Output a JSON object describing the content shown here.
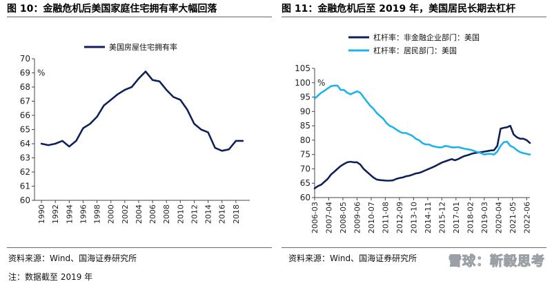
{
  "left_figure": {
    "title": "图 10：金融危机后美国家庭住宅拥有率大幅回落",
    "source": "资料来源：Wind、国海证券研究所",
    "note": "注：数据截至 2019 年"
  },
  "right_figure": {
    "title": "图 11：金融危机后至 2019 年，美国居民长期去杠杆",
    "source": "资料来源：Wind、国海证券研究所"
  },
  "watermark": "雪球：靳毅思考",
  "colors": {
    "dark_series": "#0d2059",
    "light_series": "#1ab3ee",
    "axis": "#444444"
  },
  "chart_data": [
    {
      "type": "line",
      "unit_label": "%",
      "ylim": [
        60,
        70
      ],
      "yticks": [
        60,
        61,
        62,
        63,
        64,
        65,
        66,
        67,
        68,
        69,
        70
      ],
      "xlim": [
        1989,
        2020
      ],
      "xticks": [
        "1990",
        "1992",
        "1994",
        "1996",
        "1998",
        "2000",
        "2002",
        "2004",
        "2006",
        "2008",
        "2010",
        "2012",
        "2014",
        "2016",
        "2018"
      ],
      "legend_position": "top-center",
      "series": [
        {
          "name": "美国房屋住宅拥有率",
          "color": "#0d2059",
          "x": [
            1990,
            1991,
            1992,
            1993,
            1994,
            1995,
            1996,
            1997,
            1998,
            1999,
            2000,
            2001,
            2002,
            2003,
            2004,
            2005,
            2006,
            2007,
            2008,
            2009,
            2010,
            2011,
            2012,
            2013,
            2014,
            2015,
            2016,
            2017,
            2018,
            2019
          ],
          "y": [
            64.0,
            63.9,
            64.0,
            64.2,
            63.8,
            64.2,
            65.1,
            65.4,
            65.9,
            66.7,
            67.1,
            67.5,
            67.8,
            68.0,
            68.6,
            69.1,
            68.5,
            68.4,
            67.8,
            67.3,
            67.1,
            66.4,
            65.4,
            65.0,
            64.8,
            63.7,
            63.5,
            63.6,
            64.2,
            64.2
          ]
        }
      ]
    },
    {
      "type": "line",
      "unit_label": "%",
      "ylim": [
        60,
        105
      ],
      "yticks": [
        60,
        65,
        70,
        75,
        80,
        85,
        90,
        95,
        100,
        105
      ],
      "xlim": [
        "2006-03",
        "2022-09"
      ],
      "xticks": [
        "2006-03",
        "2007-04",
        "2008-05",
        "2009-06",
        "2010-07",
        "2011-08",
        "2012-09",
        "2013-10",
        "2014-11",
        "2015-12",
        "2017-01",
        "2018-02",
        "2019-03",
        "2020-04",
        "2021-05",
        "2022-06"
      ],
      "legend_position": "top-center",
      "series": [
        {
          "name": "杠杆率：非金融企业部门：美国",
          "color": "#0d2059",
          "x": [
            "2006-03",
            "2006-06",
            "2006-09",
            "2006-12",
            "2007-03",
            "2007-06",
            "2007-09",
            "2007-12",
            "2008-03",
            "2008-06",
            "2008-09",
            "2008-12",
            "2009-03",
            "2009-06",
            "2009-09",
            "2009-12",
            "2010-03",
            "2010-06",
            "2010-09",
            "2010-12",
            "2011-03",
            "2011-06",
            "2011-09",
            "2011-12",
            "2012-03",
            "2012-06",
            "2012-09",
            "2012-12",
            "2013-03",
            "2013-06",
            "2013-09",
            "2013-12",
            "2014-03",
            "2014-06",
            "2014-09",
            "2014-12",
            "2015-03",
            "2015-06",
            "2015-09",
            "2015-12",
            "2016-03",
            "2016-06",
            "2016-09",
            "2016-12",
            "2017-03",
            "2017-06",
            "2017-09",
            "2017-12",
            "2018-03",
            "2018-06",
            "2018-09",
            "2018-12",
            "2019-03",
            "2019-06",
            "2019-09",
            "2019-12",
            "2020-03",
            "2020-06",
            "2020-09",
            "2020-12",
            "2021-03",
            "2021-06",
            "2021-09",
            "2021-12",
            "2022-03",
            "2022-06",
            "2022-09"
          ],
          "y": [
            63.2,
            64.0,
            64.5,
            65.5,
            66.5,
            68.0,
            69.0,
            70.0,
            71.0,
            71.7,
            72.3,
            72.5,
            72.3,
            72.3,
            71.5,
            70.0,
            69.0,
            68.0,
            67.0,
            66.3,
            66.1,
            66.0,
            65.9,
            65.9,
            66.0,
            66.5,
            66.8,
            67.0,
            67.4,
            67.6,
            68.0,
            68.4,
            68.6,
            69.0,
            69.5,
            70.0,
            70.5,
            71.0,
            71.6,
            72.2,
            72.6,
            73.0,
            73.4,
            73.0,
            73.4,
            74.0,
            74.5,
            74.8,
            75.2,
            75.5,
            75.7,
            75.8,
            76.0,
            76.2,
            76.4,
            76.5,
            78.0,
            84.0,
            84.3,
            84.5,
            85.0,
            82.0,
            81.0,
            80.5,
            80.5,
            80.0,
            79.0
          ]
        },
        {
          "name": "杠杆率：居民部门：美国",
          "color": "#1ab3ee",
          "x": [
            "2006-03",
            "2006-06",
            "2006-09",
            "2006-12",
            "2007-03",
            "2007-06",
            "2007-09",
            "2007-12",
            "2008-03",
            "2008-06",
            "2008-09",
            "2008-12",
            "2009-03",
            "2009-06",
            "2009-09",
            "2009-12",
            "2010-03",
            "2010-06",
            "2010-09",
            "2010-12",
            "2011-03",
            "2011-06",
            "2011-09",
            "2011-12",
            "2012-03",
            "2012-06",
            "2012-09",
            "2012-12",
            "2013-03",
            "2013-06",
            "2013-09",
            "2013-12",
            "2014-03",
            "2014-06",
            "2014-09",
            "2014-12",
            "2015-03",
            "2015-06",
            "2015-09",
            "2015-12",
            "2016-03",
            "2016-06",
            "2016-09",
            "2016-12",
            "2017-03",
            "2017-06",
            "2017-09",
            "2017-12",
            "2018-03",
            "2018-06",
            "2018-09",
            "2018-12",
            "2019-03",
            "2019-06",
            "2019-09",
            "2019-12",
            "2020-03",
            "2020-06",
            "2020-09",
            "2020-12",
            "2021-03",
            "2021-06",
            "2021-09",
            "2021-12",
            "2022-03",
            "2022-06",
            "2022-09"
          ],
          "y": [
            94.5,
            95.5,
            96.5,
            97.2,
            98.0,
            98.8,
            99.0,
            99.0,
            97.5,
            97.5,
            96.5,
            96.0,
            96.5,
            97.0,
            96.5,
            95.0,
            93.5,
            92.0,
            91.0,
            89.5,
            88.5,
            87.5,
            86.0,
            85.0,
            84.5,
            83.7,
            83.0,
            82.5,
            82.5,
            82.0,
            81.5,
            80.5,
            80.0,
            79.0,
            78.5,
            78.5,
            78.0,
            77.7,
            77.5,
            77.5,
            78.0,
            77.8,
            77.5,
            77.5,
            77.6,
            77.3,
            77.0,
            76.8,
            76.6,
            76.2,
            75.8,
            75.5,
            75.0,
            75.2,
            75.2,
            75.0,
            76.0,
            78.0,
            79.3,
            79.5,
            78.0,
            77.5,
            76.5,
            75.8,
            75.5,
            75.2,
            75.0
          ]
        }
      ]
    }
  ]
}
